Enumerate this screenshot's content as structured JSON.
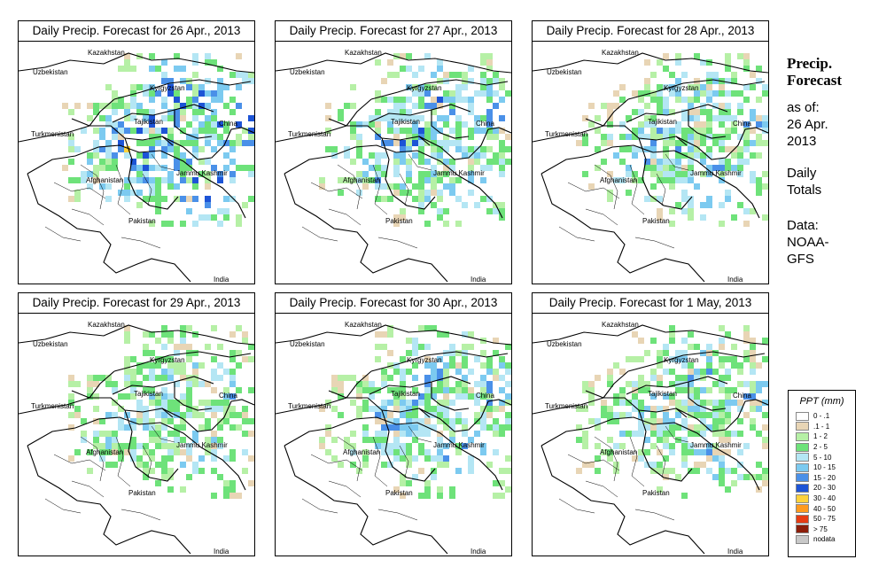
{
  "panels": [
    {
      "title": "Daily Precip. Forecast for  26 Apr., 2013",
      "intensity": 1.0
    },
    {
      "title": "Daily Precip. Forecast for  27 Apr., 2013",
      "intensity": 0.8
    },
    {
      "title": "Daily Precip. Forecast for  28 Apr., 2013",
      "intensity": 0.7
    },
    {
      "title": "Daily Precip. Forecast for  29 Apr., 2013",
      "intensity": 0.6
    },
    {
      "title": "Daily Precip. Forecast for  30 Apr., 2013",
      "intensity": 0.7
    },
    {
      "title": "Daily Precip. Forecast for  1 May, 2013",
      "intensity": 0.65
    }
  ],
  "map_labels": {
    "kazakhstan": "Kazakhstan",
    "uzbekistan": "Uzbekistan",
    "kyrgyzstan": "Kyrgyzstan",
    "tajikistan": "Tajikistan",
    "turkmenistan": "Turkmenistan",
    "china": "China",
    "afghanistan": "Afghanistan",
    "jammu_kashmir": "Jammu Kashmir",
    "pakistan": "Pakistan",
    "india": "India"
  },
  "side": {
    "title_line1": "Precip.",
    "title_line2": "Forecast",
    "asof_line1": "as of:",
    "asof_line2": "26 Apr.",
    "asof_line3": "2013",
    "totals_line1": "Daily",
    "totals_line2": "Totals",
    "data_line1": "Data:",
    "data_line2": "NOAA-",
    "data_line3": "GFS"
  },
  "legend": {
    "title": "PPT (mm)",
    "items": [
      {
        "label": "0 - .1",
        "color": "#ffffff"
      },
      {
        "label": ".1 - 1",
        "color": "#e8d5b5"
      },
      {
        "label": "1 - 2",
        "color": "#b6f0a6"
      },
      {
        "label": "2 - 5",
        "color": "#6ee27a"
      },
      {
        "label": "5 - 10",
        "color": "#b4e6f4"
      },
      {
        "label": "10 - 15",
        "color": "#7ccaf0"
      },
      {
        "label": "15 - 20",
        "color": "#4a90e8"
      },
      {
        "label": "20 - 30",
        "color": "#1d54d6"
      },
      {
        "label": "30 - 40",
        "color": "#ffd23c"
      },
      {
        "label": "40 - 50",
        "color": "#ff9a1e"
      },
      {
        "label": "50 - 75",
        "color": "#e63c14"
      },
      {
        "label": "> 75",
        "color": "#8c1e0a"
      },
      {
        "label": "nodata",
        "color": "#c8c8c8"
      }
    ]
  }
}
